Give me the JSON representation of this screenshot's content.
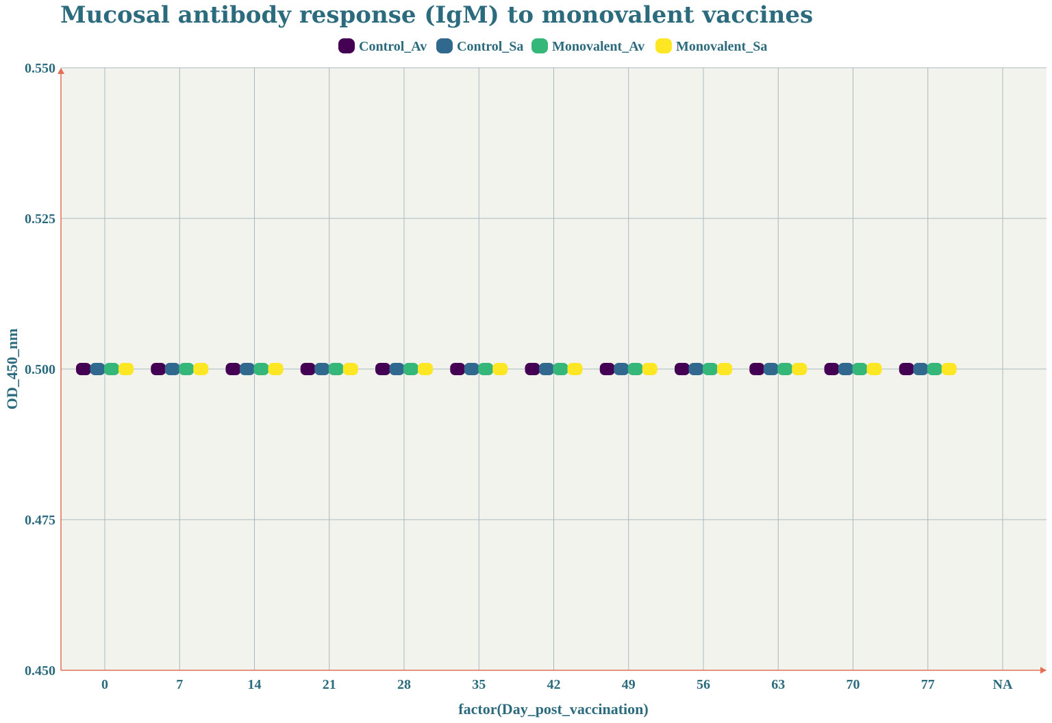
{
  "chart_data": {
    "type": "scatter",
    "title": "Mucosal antibody response (IgM) to monovalent vaccines",
    "xlabel": "factor(Day_post_vaccination)",
    "ylabel": "OD_450_nm",
    "categories": [
      "0",
      "7",
      "14",
      "21",
      "28",
      "35",
      "42",
      "49",
      "56",
      "63",
      "70",
      "77",
      "NA"
    ],
    "ylim": [
      0.45,
      0.55
    ],
    "yticks": [
      "0.450",
      "0.475",
      "0.500",
      "0.525",
      "0.550"
    ],
    "legend_position": "top",
    "grid": true,
    "series": [
      {
        "name": "Control_Av",
        "color": "#440154",
        "values": [
          0.5,
          0.5,
          0.5,
          0.5,
          0.5,
          0.5,
          0.5,
          0.5,
          0.5,
          0.5,
          0.5,
          0.5,
          null
        ]
      },
      {
        "name": "Control_Sa",
        "color": "#31688e",
        "values": [
          0.5,
          0.5,
          0.5,
          0.5,
          0.5,
          0.5,
          0.5,
          0.5,
          0.5,
          0.5,
          0.5,
          0.5,
          null
        ]
      },
      {
        "name": "Monovalent_Av",
        "color": "#35b779",
        "values": [
          0.5,
          0.5,
          0.5,
          0.5,
          0.5,
          0.5,
          0.5,
          0.5,
          0.5,
          0.5,
          0.5,
          0.5,
          null
        ]
      },
      {
        "name": "Monovalent_Sa",
        "color": "#fde725",
        "values": [
          0.5,
          0.5,
          0.5,
          0.5,
          0.5,
          0.5,
          0.5,
          0.5,
          0.5,
          0.5,
          0.5,
          0.5,
          null
        ]
      }
    ],
    "colors": {
      "plot_background": "#f3f3ee",
      "grid": "#a9b8bd",
      "axis": "#e46f56",
      "text": "#2c6b7d"
    }
  }
}
